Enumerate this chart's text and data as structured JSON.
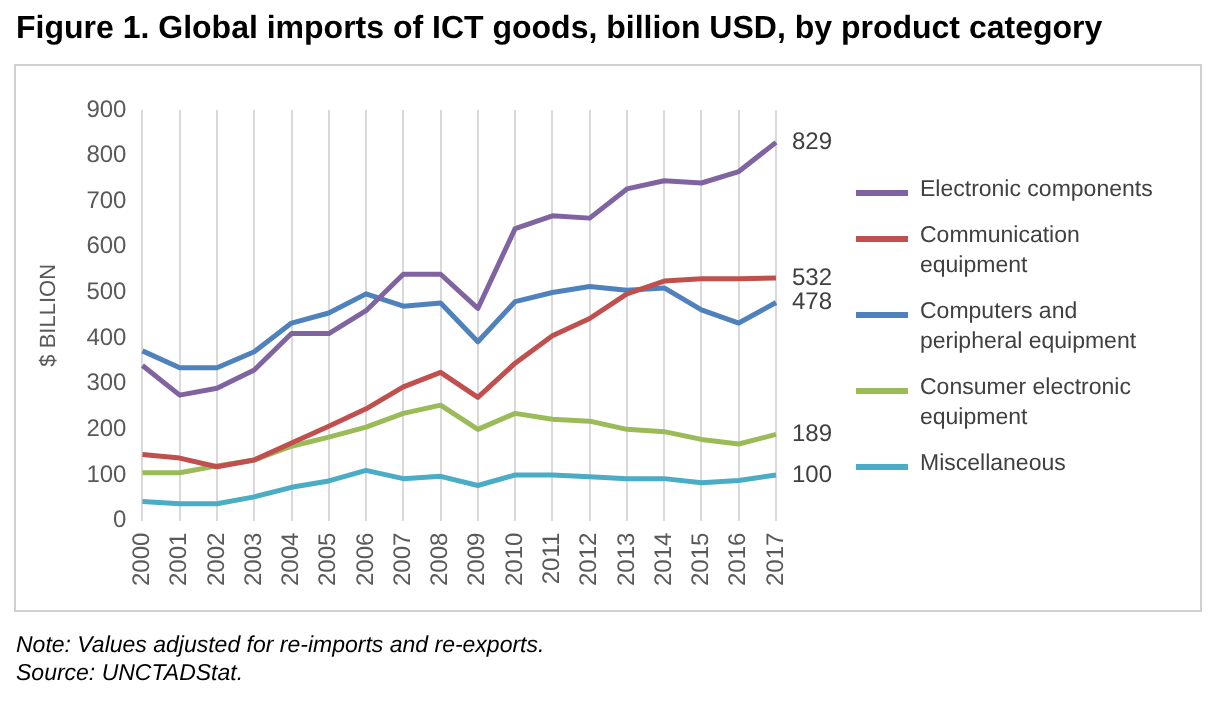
{
  "chart_data": {
    "type": "line",
    "title": "Figure 1. Global imports of ICT goods, billion USD, by product category",
    "ylabel": "$ BILLION",
    "categories": [
      "2000",
      "2001",
      "2002",
      "2003",
      "2004",
      "2005",
      "2006",
      "2007",
      "2008",
      "2009",
      "2010",
      "2011",
      "2012",
      "2013",
      "2014",
      "2015",
      "2016",
      "2017"
    ],
    "series": [
      {
        "name": "Electronic components",
        "color": "#8064a2",
        "values": [
          340,
          275,
          290,
          330,
          410,
          410,
          460,
          540,
          540,
          465,
          640,
          668,
          663,
          727,
          745,
          740,
          765,
          829
        ],
        "value_labels": [
          null,
          null,
          null,
          null,
          null,
          null,
          null,
          null,
          null,
          null,
          null,
          null,
          null,
          null,
          null,
          null,
          null,
          "829"
        ]
      },
      {
        "name": "Communication equipment",
        "color": "#c0504d",
        "values": [
          145,
          137,
          118,
          133,
          170,
          207,
          245,
          293,
          325,
          270,
          345,
          405,
          443,
          497,
          525,
          530,
          530,
          532
        ],
        "value_labels": [
          null,
          null,
          null,
          null,
          null,
          null,
          null,
          null,
          null,
          null,
          null,
          null,
          null,
          null,
          null,
          null,
          null,
          "532"
        ]
      },
      {
        "name": "Computers and peripheral equipment",
        "color": "#4f81bd",
        "values": [
          372,
          335,
          335,
          370,
          433,
          455,
          497,
          470,
          477,
          392,
          480,
          500,
          513,
          505,
          510,
          462,
          433,
          478
        ],
        "value_labels": [
          null,
          null,
          null,
          null,
          null,
          null,
          null,
          null,
          null,
          null,
          null,
          null,
          null,
          null,
          null,
          null,
          null,
          "478"
        ]
      },
      {
        "name": "Consumer electronic equipment",
        "color": "#9bbb59",
        "values": [
          105,
          105,
          120,
          133,
          163,
          183,
          205,
          235,
          253,
          200,
          235,
          222,
          218,
          200,
          195,
          178,
          168,
          189
        ],
        "value_labels": [
          null,
          null,
          null,
          null,
          null,
          null,
          null,
          null,
          null,
          null,
          null,
          null,
          null,
          null,
          null,
          null,
          null,
          "189"
        ]
      },
      {
        "name": "Miscellaneous",
        "color": "#4bacc6",
        "values": [
          42,
          37,
          37,
          52,
          73,
          87,
          110,
          92,
          97,
          77,
          100,
          100,
          96,
          92,
          92,
          83,
          88,
          100
        ],
        "value_labels": [
          null,
          null,
          null,
          null,
          null,
          null,
          null,
          null,
          null,
          null,
          null,
          null,
          null,
          null,
          null,
          null,
          null,
          "100"
        ]
      }
    ],
    "ylim": [
      0,
      900
    ],
    "yticks": [
      0,
      100,
      200,
      300,
      400,
      500,
      600,
      700,
      800,
      900
    ],
    "grid": "x",
    "legend": "right",
    "marker": "none",
    "line_style": "solid",
    "annotations": [
      "Note: Values adjusted for re-imports and re-exports.",
      "Source: UNCTADStat."
    ]
  }
}
